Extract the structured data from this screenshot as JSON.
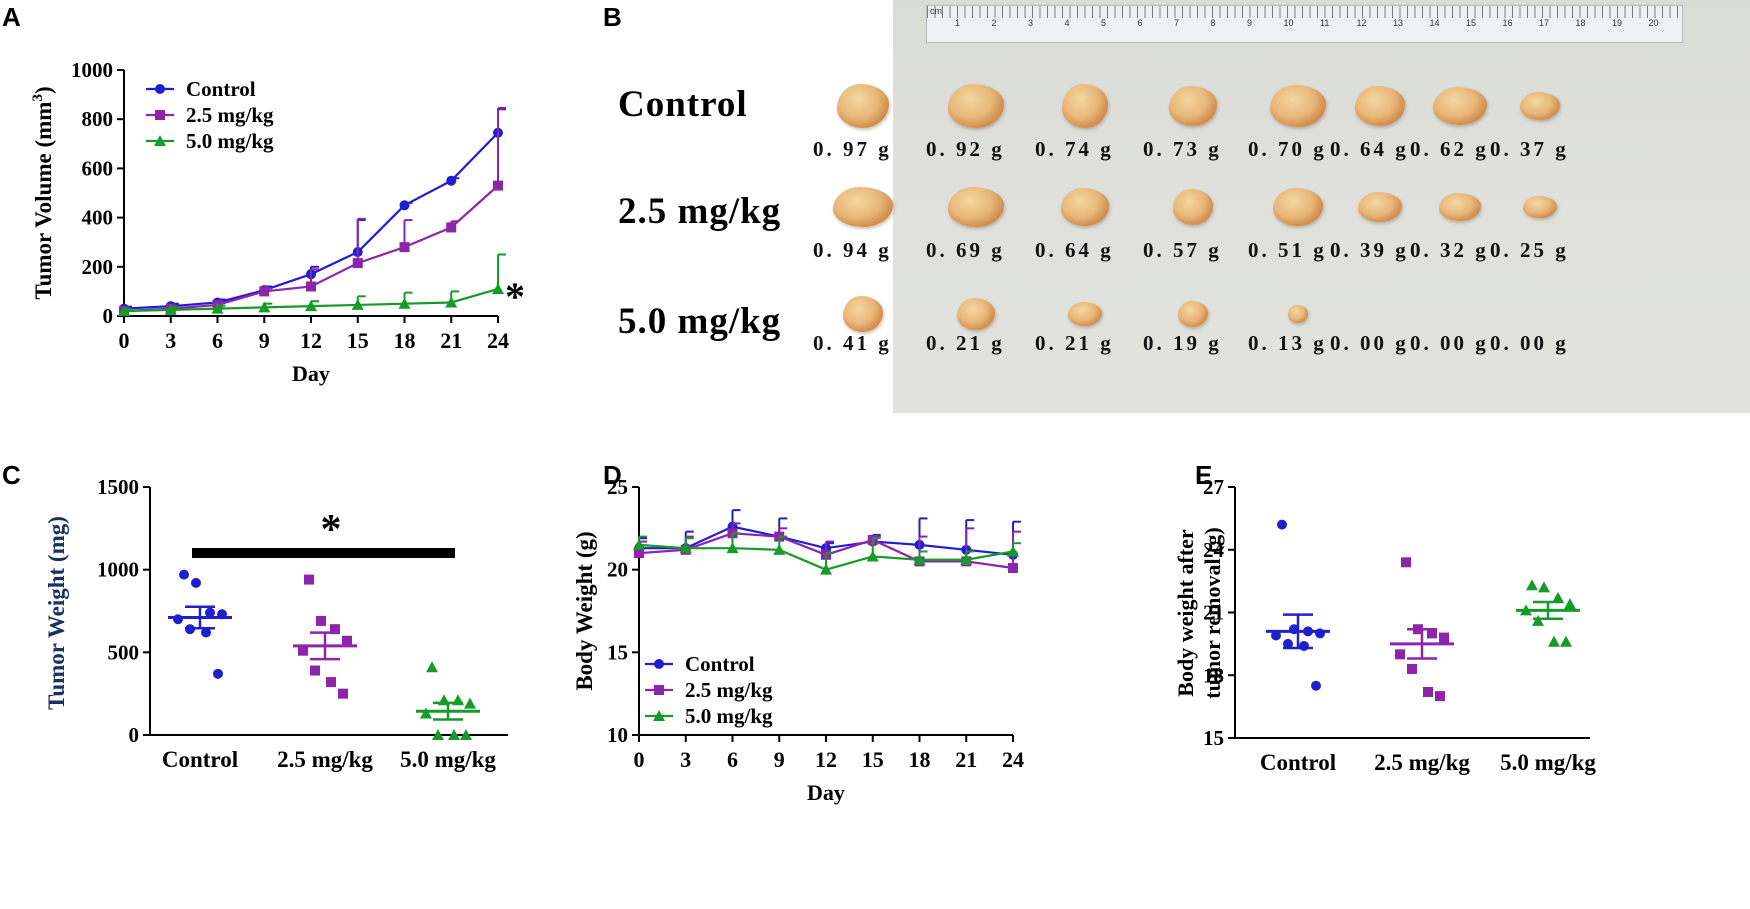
{
  "panels": {
    "A": "A",
    "B": "B",
    "C": "C",
    "D": "D",
    "E": "E"
  },
  "colors": {
    "control": "#1f1fd0",
    "mid": "#8e24aa",
    "high": "#159b27"
  },
  "chart_data": [
    {
      "id": "A",
      "type": "line",
      "ylabel_main": "Tumor Volume (mm",
      "ylabel_sup": "3",
      "ylabel_end": ")",
      "xlabel": "Day",
      "x": [
        0,
        3,
        6,
        9,
        12,
        15,
        18,
        21,
        24
      ],
      "xlim": [
        0,
        24
      ],
      "ylim": [
        0,
        1000
      ],
      "yticks": [
        0,
        200,
        400,
        600,
        800,
        1000
      ],
      "xticks": [
        0,
        3,
        6,
        9,
        12,
        15,
        18,
        21,
        24
      ],
      "series": [
        {
          "name": "Control",
          "values": [
            30,
            40,
            55,
            105,
            170,
            260,
            450,
            550,
            745
          ],
          "errors": [
            8,
            10,
            12,
            15,
            30,
            130,
            10,
            10,
            100
          ]
        },
        {
          "name": "2.5 mg/kg",
          "values": [
            20,
            30,
            45,
            100,
            120,
            215,
            280,
            360,
            530
          ],
          "errors": [
            6,
            8,
            10,
            12,
            70,
            180,
            110,
            25,
            310
          ]
        },
        {
          "name": "5.0 mg/kg",
          "values": [
            20,
            25,
            30,
            35,
            40,
            45,
            50,
            55,
            110
          ],
          "errors": [
            8,
            10,
            12,
            15,
            20,
            35,
            45,
            45,
            140
          ]
        }
      ],
      "annotation": "*"
    },
    {
      "id": "C",
      "type": "scatter",
      "ylabel": "Tumor Weight (mg)",
      "categories": [
        "Control",
        "2.5 mg/kg",
        "5.0 mg/kg"
      ],
      "ylim": [
        0,
        1500
      ],
      "yticks": [
        0,
        500,
        1000,
        1500
      ],
      "series": [
        {
          "name": "Control",
          "values": [
            970,
            920,
            740,
            730,
            700,
            640,
            620,
            370
          ],
          "mean": 711,
          "sem": 65
        },
        {
          "name": "2.5 mg/kg",
          "values": [
            940,
            690,
            640,
            570,
            510,
            390,
            320,
            250
          ],
          "mean": 539,
          "sem": 80
        },
        {
          "name": "5.0 mg/kg",
          "values": [
            410,
            210,
            210,
            190,
            130,
            0,
            0,
            0
          ],
          "mean": 144,
          "sem": 50
        }
      ],
      "annotation": "*"
    },
    {
      "id": "D",
      "type": "line",
      "ylabel": "Body Weight (g)",
      "xlabel": "Day",
      "x": [
        0,
        3,
        6,
        9,
        12,
        15,
        18,
        21,
        24
      ],
      "xlim": [
        0,
        24
      ],
      "ylim": [
        10,
        25
      ],
      "yticks": [
        10,
        15,
        20,
        25
      ],
      "xticks": [
        0,
        3,
        6,
        9,
        12,
        15,
        18,
        21,
        24
      ],
      "series": [
        {
          "name": "Control",
          "values": [
            21.3,
            21.3,
            22.6,
            22.0,
            21.3,
            21.7,
            21.5,
            21.2,
            20.9
          ],
          "errors": [
            0.6,
            1.0,
            1.0,
            1.1,
            0.3,
            0.4,
            1.6,
            1.8,
            2.0
          ]
        },
        {
          "name": "2.5 mg/kg",
          "values": [
            21.0,
            21.2,
            22.2,
            22.0,
            20.9,
            21.8,
            20.5,
            20.5,
            20.1
          ],
          "errors": [
            0.7,
            0.8,
            0.6,
            0.5,
            0.8,
            0.2,
            1.5,
            2.0,
            2.2
          ]
        },
        {
          "name": "5.0 mg/kg",
          "values": [
            21.5,
            21.3,
            21.3,
            21.2,
            20.0,
            20.8,
            20.6,
            20.6,
            21.1
          ],
          "errors": [
            0.5,
            0.6,
            0.9,
            0.8,
            1.0,
            1.1,
            0.5,
            0.5,
            0.5
          ]
        }
      ]
    },
    {
      "id": "E",
      "type": "scatter",
      "ylabel1": "Body weight after",
      "ylabel2": "tumor removal (g)",
      "categories": [
        "Control",
        "2.5 mg/kg",
        "5.0 mg/kg"
      ],
      "ylim": [
        15,
        27
      ],
      "yticks": [
        15,
        18,
        21,
        24,
        27
      ],
      "series": [
        {
          "name": "Control",
          "values": [
            25.2,
            20.2,
            20.1,
            20.0,
            19.9,
            19.5,
            19.4,
            17.5
          ],
          "mean": 20.1,
          "sem": 0.8
        },
        {
          "name": "2.5 mg/kg",
          "values": [
            23.4,
            20.2,
            20.0,
            19.8,
            19.0,
            18.3,
            17.2,
            17.0
          ],
          "mean": 19.5,
          "sem": 0.7
        },
        {
          "name": "5.0 mg/kg",
          "values": [
            22.3,
            22.2,
            21.7,
            21.4,
            21.1,
            20.6,
            19.6,
            19.6
          ],
          "mean": 21.1,
          "sem": 0.4
        }
      ]
    }
  ],
  "photo": {
    "rows": [
      {
        "label": "Control",
        "weights": [
          "0. 97 g",
          "0. 92 g",
          "0. 74 g",
          "0. 73 g",
          "0. 70 g",
          "0. 64 g",
          "0. 62 g",
          "0. 37 g"
        ]
      },
      {
        "label": "2.5 mg/kg",
        "weights": [
          "0. 94 g",
          "0. 69 g",
          "0. 64 g",
          "0. 57 g",
          "0. 51 g",
          "0. 39 g",
          "0. 32 g",
          "0. 25 g"
        ]
      },
      {
        "label": "5.0 mg/kg",
        "weights": [
          "0. 41 g",
          "0. 21 g",
          "0. 21 g",
          "0. 19 g",
          "0. 13 g",
          "0. 00 g",
          "0. 00 g",
          "0. 00 g"
        ]
      }
    ],
    "ruler_unit": "cm",
    "ruler_numbers": [
      "1",
      "2",
      "3",
      "4",
      "5",
      "6",
      "7",
      "8",
      "9",
      "10",
      "11",
      "12",
      "13",
      "14",
      "15",
      "16",
      "17",
      "18",
      "19",
      "20"
    ]
  }
}
